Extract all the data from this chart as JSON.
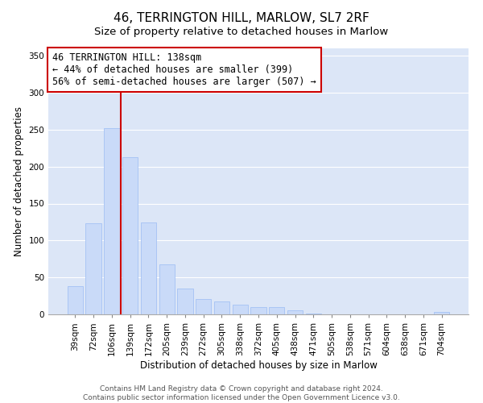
{
  "title": "46, TERRINGTON HILL, MARLOW, SL7 2RF",
  "subtitle": "Size of property relative to detached houses in Marlow",
  "xlabel": "Distribution of detached houses by size in Marlow",
  "ylabel": "Number of detached properties",
  "categories": [
    "39sqm",
    "72sqm",
    "106sqm",
    "139sqm",
    "172sqm",
    "205sqm",
    "239sqm",
    "272sqm",
    "305sqm",
    "338sqm",
    "372sqm",
    "405sqm",
    "438sqm",
    "471sqm",
    "505sqm",
    "538sqm",
    "571sqm",
    "604sqm",
    "638sqm",
    "671sqm",
    "704sqm"
  ],
  "values": [
    38,
    123,
    252,
    213,
    124,
    68,
    35,
    21,
    17,
    13,
    10,
    10,
    5,
    1,
    0,
    0,
    0,
    0,
    0,
    0,
    3
  ],
  "bar_color": "#c9daf8",
  "bar_edge_color": "#a4c2f4",
  "property_line_index": 3,
  "property_line_color": "#cc0000",
  "annotation_text": "46 TERRINGTON HILL: 138sqm\n← 44% of detached houses are smaller (399)\n56% of semi-detached houses are larger (507) →",
  "annotation_box_color": "#ffffff",
  "annotation_box_edge": "#cc0000",
  "ylim": [
    0,
    360
  ],
  "yticks": [
    0,
    50,
    100,
    150,
    200,
    250,
    300,
    350
  ],
  "footer_line1": "Contains HM Land Registry data © Crown copyright and database right 2024.",
  "footer_line2": "Contains public sector information licensed under the Open Government Licence v3.0.",
  "bg_color": "#ffffff",
  "plot_bg_color": "#dce6f7",
  "grid_color": "#ffffff",
  "title_fontsize": 11,
  "subtitle_fontsize": 9.5,
  "axis_label_fontsize": 8.5,
  "tick_fontsize": 7.5,
  "annotation_fontsize": 8.5,
  "footer_fontsize": 6.5
}
